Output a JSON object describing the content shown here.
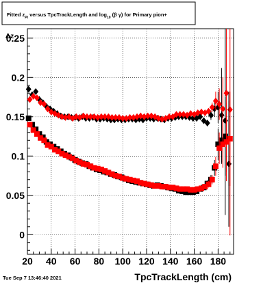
{
  "chart_data": {
    "type": "scatter",
    "title_parts": {
      "t1": "Fitted  z",
      "t1_sub": "Pi",
      "t2": "  versus TpcTrackLength and log",
      "t2_sub": "10",
      "t3": "(β  γ) for Primary pion+"
    },
    "xlabel": "TpcTrackLength (cm)",
    "ylabel": "Δz",
    "datestamp": "Tue Sep  7 13:46:40 2021",
    "xlim": [
      20,
      193
    ],
    "ylim": [
      -0.025,
      0.262
    ],
    "xticks": [
      20,
      40,
      60,
      80,
      100,
      120,
      140,
      160,
      180
    ],
    "yticks": [
      0,
      0.05,
      0.1,
      0.15,
      0.2,
      0.25
    ],
    "ytick_labels": [
      "0",
      "0.05",
      "0.1",
      "0.15",
      "0.2",
      "0.25"
    ],
    "grid": true,
    "series": [
      {
        "marker": "diamond",
        "color": "#000000",
        "x": [
          21,
          24,
          27,
          30,
          33,
          36,
          39,
          42,
          45,
          48,
          51,
          54,
          57,
          60,
          63,
          66,
          69,
          72,
          75,
          78,
          81,
          84,
          87,
          90,
          93,
          96,
          99,
          102,
          105,
          108,
          111,
          114,
          117,
          120,
          123,
          126,
          129,
          132,
          135,
          138,
          141,
          144,
          147,
          150,
          153,
          156,
          159,
          162,
          165,
          168,
          171,
          174,
          177,
          180,
          183,
          186,
          189
        ],
        "y": [
          0.185,
          0.178,
          0.182,
          0.172,
          0.168,
          0.163,
          0.16,
          0.157,
          0.154,
          0.151,
          0.15,
          0.15,
          0.149,
          0.149,
          0.148,
          0.15,
          0.148,
          0.148,
          0.149,
          0.147,
          0.147,
          0.148,
          0.147,
          0.146,
          0.146,
          0.147,
          0.146,
          0.146,
          0.147,
          0.147,
          0.146,
          0.147,
          0.146,
          0.148,
          0.148,
          0.147,
          0.148,
          0.147,
          0.146,
          0.148,
          0.148,
          0.149,
          0.15,
          0.15,
          0.15,
          0.149,
          0.148,
          0.148,
          0.15,
          0.145,
          0.142,
          0.152,
          0.16,
          0.162,
          0.152,
          0.145,
          0.09
        ],
        "err": [
          0,
          0,
          0,
          0,
          0,
          0,
          0,
          0,
          0,
          0,
          0,
          0,
          0,
          0,
          0,
          0,
          0,
          0,
          0,
          0,
          0,
          0,
          0,
          0,
          0,
          0,
          0,
          0,
          0,
          0,
          0,
          0,
          0,
          0,
          0,
          0,
          0,
          0,
          0,
          0,
          0,
          0,
          0,
          0,
          0,
          0,
          0,
          0,
          0,
          0,
          0.004,
          0.006,
          0.01,
          0.02,
          0.06,
          0.12,
          0.08
        ]
      },
      {
        "marker": "diamond",
        "color": "#ff0000",
        "x": [
          22,
          25,
          28,
          31,
          34,
          37,
          40,
          43,
          46,
          49,
          52,
          55,
          58,
          61,
          64,
          67,
          70,
          73,
          76,
          79,
          82,
          85,
          88,
          91,
          94,
          97,
          100,
          103,
          106,
          109,
          112,
          115,
          118,
          121,
          124,
          127,
          130,
          133,
          136,
          139,
          142,
          145,
          148,
          151,
          154,
          157,
          160,
          163,
          166,
          169,
          172,
          175,
          178,
          181,
          184,
          187,
          190
        ],
        "y": [
          0.172,
          0.176,
          0.174,
          0.168,
          0.166,
          0.16,
          0.156,
          0.154,
          0.152,
          0.15,
          0.149,
          0.15,
          0.148,
          0.15,
          0.149,
          0.151,
          0.15,
          0.15,
          0.15,
          0.149,
          0.15,
          0.15,
          0.15,
          0.149,
          0.149,
          0.149,
          0.148,
          0.148,
          0.149,
          0.149,
          0.15,
          0.151,
          0.15,
          0.151,
          0.151,
          0.15,
          0.148,
          0.147,
          0.148,
          0.15,
          0.15,
          0.153,
          0.153,
          0.153,
          0.152,
          0.154,
          0.153,
          0.155,
          0.156,
          0.155,
          0.157,
          0.162,
          0.17,
          0.166,
          0.16,
          0.18,
          0.159
        ],
        "err": [
          0,
          0,
          0,
          0,
          0,
          0,
          0,
          0,
          0,
          0,
          0,
          0,
          0,
          0,
          0,
          0,
          0,
          0,
          0,
          0,
          0,
          0,
          0,
          0,
          0,
          0,
          0,
          0,
          0,
          0,
          0,
          0,
          0,
          0,
          0,
          0,
          0,
          0,
          0,
          0,
          0,
          0,
          0,
          0,
          0,
          0,
          0,
          0,
          0,
          0,
          0.004,
          0.006,
          0.012,
          0.02,
          0.04,
          0.1,
          0.16
        ]
      },
      {
        "marker": "square",
        "color": "#000000",
        "x": [
          21,
          24,
          27,
          30,
          33,
          36,
          39,
          42,
          45,
          48,
          51,
          54,
          57,
          60,
          63,
          66,
          69,
          72,
          75,
          78,
          81,
          84,
          87,
          90,
          93,
          96,
          99,
          102,
          105,
          108,
          111,
          114,
          117,
          120,
          123,
          126,
          129,
          132,
          135,
          138,
          141,
          144,
          147,
          150,
          153,
          156,
          159,
          162,
          165,
          168,
          171,
          174,
          177,
          180,
          183,
          186,
          189
        ],
        "y": [
          0.148,
          0.14,
          0.134,
          0.128,
          0.124,
          0.118,
          0.115,
          0.112,
          0.109,
          0.106,
          0.103,
          0.101,
          0.098,
          0.095,
          0.093,
          0.091,
          0.09,
          0.087,
          0.085,
          0.083,
          0.082,
          0.08,
          0.079,
          0.077,
          0.076,
          0.074,
          0.073,
          0.071,
          0.069,
          0.068,
          0.067,
          0.066,
          0.065,
          0.064,
          0.063,
          0.062,
          0.063,
          0.062,
          0.061,
          0.06,
          0.059,
          0.058,
          0.056,
          0.055,
          0.054,
          0.054,
          0.054,
          0.055,
          0.058,
          0.06,
          0.065,
          0.07,
          0.085,
          0.115,
          0.12,
          0.125,
          0.122
        ],
        "err": [
          0,
          0,
          0,
          0,
          0,
          0,
          0,
          0,
          0,
          0,
          0,
          0,
          0,
          0,
          0,
          0,
          0,
          0,
          0,
          0,
          0,
          0,
          0,
          0,
          0,
          0,
          0,
          0,
          0,
          0,
          0,
          0,
          0,
          0,
          0,
          0,
          0,
          0,
          0,
          0,
          0,
          0,
          0,
          0,
          0,
          0,
          0,
          0,
          0,
          0,
          0.004,
          0.006,
          0.01,
          0.02,
          0.03,
          0.05,
          0.06
        ]
      },
      {
        "marker": "square",
        "color": "#ff0000",
        "x": [
          22,
          25,
          28,
          31,
          34,
          37,
          40,
          43,
          46,
          49,
          52,
          55,
          58,
          61,
          64,
          67,
          70,
          73,
          76,
          79,
          82,
          85,
          88,
          91,
          94,
          97,
          100,
          103,
          106,
          109,
          112,
          115,
          118,
          121,
          124,
          127,
          130,
          133,
          136,
          139,
          142,
          145,
          148,
          151,
          154,
          157,
          160,
          163,
          166,
          169,
          172,
          175,
          178,
          181,
          184,
          187,
          190
        ],
        "y": [
          0.14,
          0.133,
          0.128,
          0.123,
          0.12,
          0.114,
          0.112,
          0.108,
          0.106,
          0.103,
          0.101,
          0.099,
          0.097,
          0.094,
          0.092,
          0.09,
          0.089,
          0.087,
          0.085,
          0.084,
          0.083,
          0.081,
          0.079,
          0.077,
          0.075,
          0.074,
          0.072,
          0.071,
          0.07,
          0.069,
          0.068,
          0.066,
          0.065,
          0.064,
          0.063,
          0.062,
          0.062,
          0.061,
          0.061,
          0.06,
          0.06,
          0.059,
          0.058,
          0.058,
          0.058,
          0.057,
          0.057,
          0.058,
          0.059,
          0.061,
          0.064,
          0.07,
          0.087,
          0.11,
          0.115,
          0.118,
          0.122
        ],
        "err": [
          0,
          0,
          0,
          0,
          0,
          0,
          0,
          0,
          0,
          0,
          0,
          0,
          0,
          0,
          0,
          0,
          0,
          0,
          0,
          0,
          0,
          0,
          0,
          0,
          0,
          0,
          0,
          0,
          0,
          0,
          0,
          0,
          0,
          0,
          0,
          0,
          0,
          0,
          0,
          0,
          0,
          0,
          0,
          0,
          0,
          0,
          0,
          0,
          0,
          0,
          0.004,
          0.006,
          0.012,
          0.02,
          0.03,
          0.05,
          0.06
        ]
      }
    ]
  }
}
